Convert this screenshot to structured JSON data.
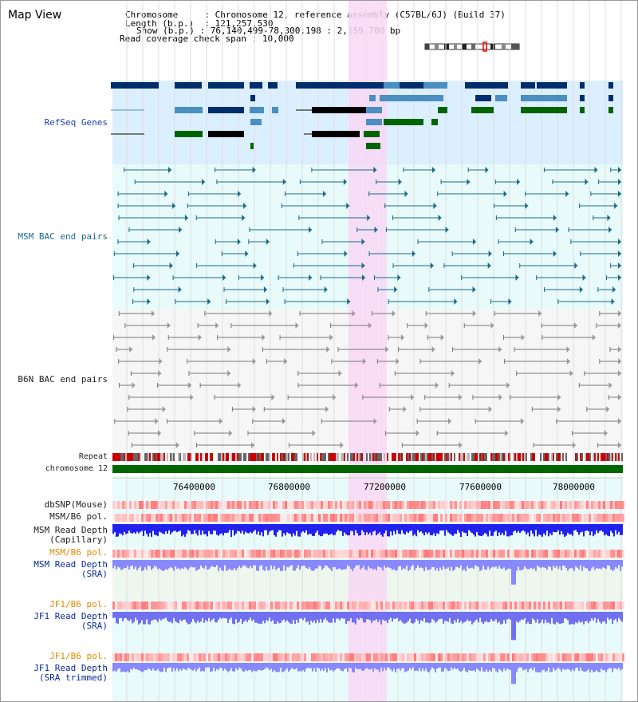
{
  "title": "Map View",
  "info": {
    "chromosome_label": "Chromosome",
    "chromosome_value": "Chromosome 12, reference assembly (C57BL/6J) (Build 37)",
    "length_label": "Length (b.p.)",
    "length_value": "121,257,530",
    "show_label": "Show (b.p.)",
    "show_value": "76,140,499-78,300,198 : 2,159,700 bp",
    "span_label": "Read coverage check span",
    "span_value": "10,000"
  },
  "tracks": {
    "refseq": "RefSeq Genes",
    "msm_bac": "MSM BAC end pairs",
    "b6n_bac": "B6N BAC end pairs",
    "repeat": "Repeat",
    "chromosome": "chromosome 12",
    "dbsnp": "dbSNP(Mouse)",
    "msm_b6_pol": "MSM/B6 pol.",
    "msm_depth_cap_1": "MSM Read Depth",
    "msm_depth_cap_2": "(Capillary)",
    "msm_b6_pol_2": "MSM/B6 pol.",
    "msm_depth_sra_1": "MSM Read Depth",
    "msm_depth_sra_2": "(SRA)",
    "jf1_b6_pol": "JF1/B6 pol.",
    "jf1_depth_1": "JF1 Read Depth",
    "jf1_depth_2": "(SRA)",
    "jf1_b6_pol_2": "JF1/B6 pol.",
    "jf1_trim_1": "JF1 Read Depth",
    "jf1_trim_2": "(SRA trimmed)"
  },
  "axis": {
    "ticks": [
      "76400000",
      "76800000",
      "77200000",
      "77600000",
      "78000000"
    ]
  },
  "colors": {
    "refseq_bg": "#dcefff",
    "msm_bg": "#e8fafa",
    "b6n_bg": "#f6f6f6",
    "highlight": "#f8d8f4",
    "chromosome": "#006600",
    "navy_gene": "#002d6e",
    "steel_gene": "#4a8fbf",
    "green_gene": "#006400",
    "teal_pair": "#1a6a8a",
    "gray_pair": "#777777",
    "depth_blue": "#2222ee",
    "depth_light": "#8888ff"
  }
}
